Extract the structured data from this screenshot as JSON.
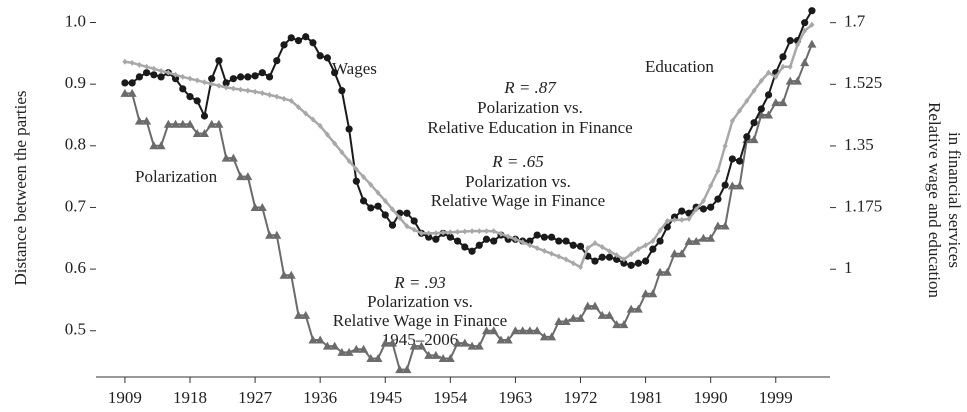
{
  "chart_data": {
    "type": "line",
    "ylabel": "Distance between the parties",
    "y2label": [
      "Relative wage and education",
      "in financial services"
    ],
    "annotations": [
      "Wages",
      "Education",
      "Polarization",
      "R = .87",
      "Polarization vs.",
      "Relative Education in Finance",
      "R = .65",
      "Polarization vs.",
      "Relative Wage in Finance",
      "R = .93",
      "Polarization vs.",
      "Relative Wage in Finance",
      "1945–2006"
    ],
    "xlim": [
      1905,
      2006.5
    ],
    "xticks": [
      1909,
      1918,
      1927,
      1936,
      1945,
      1954,
      1963,
      1972,
      1981,
      1990,
      1999
    ],
    "ylim": [
      0.425,
      1.03
    ],
    "yticks": [
      0.5,
      0.6,
      0.7,
      0.8,
      0.9,
      {
        "value": 1,
        "label": "1.0"
      }
    ],
    "y2lim": [
      0.694,
      1.753
    ],
    "y2ticks": [
      1,
      1.175,
      1.35,
      1.525,
      1.7
    ],
    "x": [
      1909,
      1910,
      1911,
      1912,
      1913,
      1914,
      1915,
      1916,
      1917,
      1918,
      1919,
      1920,
      1921,
      1922,
      1923,
      1924,
      1925,
      1926,
      1927,
      1928,
      1929,
      1930,
      1931,
      1932,
      1933,
      1934,
      1935,
      1936,
      1937,
      1938,
      1939,
      1940,
      1941,
      1942,
      1943,
      1944,
      1945,
      1946,
      1947,
      1948,
      1949,
      1950,
      1951,
      1952,
      1953,
      1954,
      1955,
      1956,
      1957,
      1958,
      1959,
      1960,
      1961,
      1962,
      1963,
      1964,
      1965,
      1966,
      1967,
      1968,
      1969,
      1970,
      1971,
      1972,
      1973,
      1974,
      1975,
      1976,
      1977,
      1978,
      1979,
      1980,
      1981,
      1982,
      1983,
      1984,
      1985,
      1986,
      1987,
      1988,
      1989,
      1990,
      1991,
      1992,
      1993,
      1994,
      1995,
      1996,
      1997,
      1998,
      1999,
      2000,
      2001,
      2002,
      2003,
      2004
    ],
    "series": [
      {
        "name": "Polarization",
        "color": "#6b6b6b",
        "marker": "triangle",
        "axis": "y",
        "values": [
          0.885,
          0.885,
          0.84,
          0.84,
          0.8,
          0.8,
          0.835,
          0.835,
          0.835,
          0.835,
          0.82,
          0.82,
          0.835,
          0.835,
          0.78,
          0.78,
          0.75,
          0.75,
          0.7,
          0.7,
          0.655,
          0.655,
          0.59,
          0.59,
          0.525,
          0.525,
          0.485,
          0.485,
          0.475,
          0.475,
          0.465,
          0.465,
          0.47,
          0.47,
          0.455,
          0.455,
          0.48,
          0.48,
          0.437,
          0.437,
          0.475,
          0.475,
          0.46,
          0.46,
          0.455,
          0.455,
          0.48,
          0.48,
          0.475,
          0.475,
          0.5,
          0.5,
          0.485,
          0.485,
          0.5,
          0.5,
          0.5,
          0.5,
          0.49,
          0.49,
          0.515,
          0.515,
          0.52,
          0.52,
          0.54,
          0.54,
          0.525,
          0.525,
          0.51,
          0.51,
          0.535,
          0.535,
          0.56,
          0.56,
          0.595,
          0.595,
          0.625,
          0.625,
          0.645,
          0.645,
          0.65,
          0.65,
          0.67,
          0.67,
          0.735,
          0.735,
          0.81,
          0.81,
          0.85,
          0.85,
          0.87,
          0.87,
          0.905,
          0.905,
          0.935,
          0.965
        ]
      },
      {
        "name": "Wages",
        "color": "#1a1a1a",
        "marker": "circle",
        "axis": "y2",
        "values": [
          1.529,
          1.529,
          1.546,
          1.558,
          1.552,
          1.546,
          1.558,
          1.541,
          1.512,
          1.49,
          1.478,
          1.435,
          1.541,
          1.592,
          1.529,
          1.541,
          1.546,
          1.546,
          1.549,
          1.558,
          1.546,
          1.592,
          1.637,
          1.657,
          1.649,
          1.66,
          1.643,
          1.606,
          1.6,
          1.558,
          1.507,
          1.398,
          1.25,
          1.194,
          1.174,
          1.179,
          1.154,
          1.125,
          1.159,
          1.159,
          1.137,
          1.102,
          1.091,
          1.085,
          1.102,
          1.091,
          1.08,
          1.063,
          1.051,
          1.068,
          1.085,
          1.08,
          1.097,
          1.085,
          1.085,
          1.08,
          1.08,
          1.097,
          1.091,
          1.091,
          1.08,
          1.08,
          1.068,
          1.065,
          1.037,
          1.023,
          1.034,
          1.034,
          1.028,
          1.017,
          1.011,
          1.017,
          1.023,
          1.057,
          1.08,
          1.12,
          1.148,
          1.165,
          1.159,
          1.176,
          1.171,
          1.176,
          1.199,
          1.239,
          1.313,
          1.307,
          1.376,
          1.416,
          1.455,
          1.495,
          1.558,
          1.603,
          1.649,
          1.649,
          1.7,
          1.734
        ]
      },
      {
        "name": "Education",
        "color": "#a8a8a8",
        "marker": "diamond",
        "axis": "y2",
        "values": [
          1.589,
          1.586,
          1.58,
          1.575,
          1.569,
          1.563,
          1.558,
          1.552,
          1.546,
          1.541,
          1.536,
          1.531,
          1.526,
          1.521,
          1.516,
          1.513,
          1.51,
          1.507,
          1.504,
          1.5,
          1.495,
          1.49,
          1.484,
          1.478,
          1.46,
          1.442,
          1.425,
          1.407,
          1.382,
          1.357,
          1.332,
          1.307,
          1.284,
          1.262,
          1.24,
          1.217,
          1.194,
          1.17,
          1.146,
          1.122,
          1.112,
          1.102,
          1.102,
          1.102,
          1.104,
          1.105,
          1.106,
          1.107,
          1.108,
          1.108,
          1.108,
          1.108,
          1.1,
          1.093,
          1.085,
          1.077,
          1.068,
          1.06,
          1.052,
          1.044,
          1.036,
          1.028,
          1.017,
          1.006,
          1.06,
          1.074,
          1.063,
          1.051,
          1.04,
          1.028,
          1.043,
          1.057,
          1.068,
          1.08,
          1.11,
          1.137,
          1.14,
          1.14,
          1.143,
          1.17,
          1.194,
          1.237,
          1.279,
          1.35,
          1.421,
          1.45,
          1.478,
          1.507,
          1.535,
          1.558,
          1.546,
          1.575,
          1.575,
          1.637,
          1.677,
          1.694
        ]
      }
    ]
  }
}
